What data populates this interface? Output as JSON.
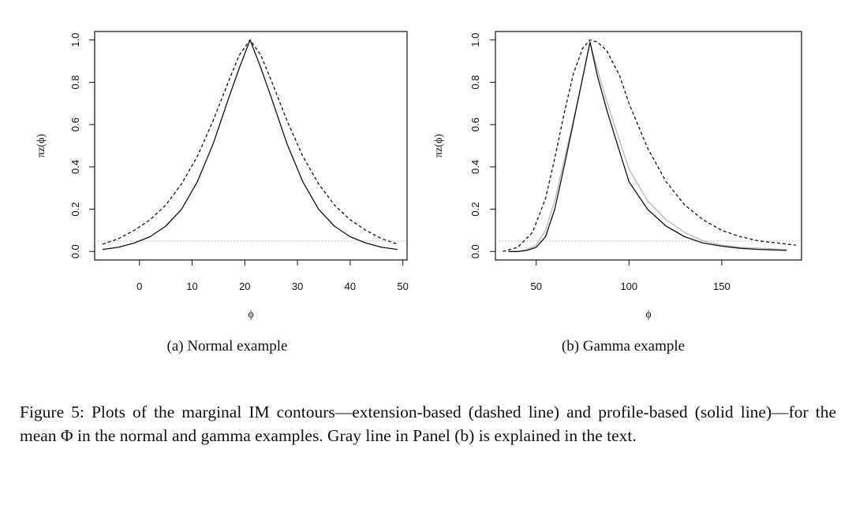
{
  "figure": {
    "caption": "Figure 5: Plots of the marginal IM contours—extension-based (dashed line) and profile-based (solid line)—for the mean Φ in the normal and gamma examples.  Gray line in Panel (b) is explained in the text."
  },
  "chart_data": [
    {
      "type": "line",
      "subcaption": "(a) Normal example",
      "xlabel": "ϕ",
      "ylabel": "πz(ϕ)",
      "xlim": [
        -8.5,
        50.8
      ],
      "ylim": [
        -0.04,
        1.04
      ],
      "xticks": [
        0,
        10,
        20,
        30,
        40,
        50
      ],
      "yticks": [
        0.0,
        0.2,
        0.4,
        0.6,
        0.8,
        1.0
      ],
      "reference_line": {
        "y": 0.05,
        "style": "dotted",
        "color": "#aaaaaa"
      },
      "series": [
        {
          "style": "dashed",
          "color": "#111111",
          "x": [
            -7,
            -4,
            -1,
            2,
            5,
            8,
            11,
            14,
            17,
            19,
            21,
            23,
            25,
            28,
            31,
            34,
            37,
            40,
            43,
            46,
            49
          ],
          "y": [
            0.035,
            0.06,
            0.1,
            0.15,
            0.22,
            0.32,
            0.45,
            0.62,
            0.81,
            0.93,
            1.0,
            0.93,
            0.81,
            0.62,
            0.45,
            0.32,
            0.22,
            0.15,
            0.1,
            0.06,
            0.035
          ]
        },
        {
          "style": "solid",
          "color": "#111111",
          "x": [
            -7,
            -4,
            -1,
            2,
            5,
            8,
            11,
            14,
            17,
            19,
            21,
            23,
            25,
            28,
            31,
            34,
            37,
            40,
            43,
            46,
            49
          ],
          "y": [
            0.01,
            0.02,
            0.04,
            0.07,
            0.12,
            0.2,
            0.33,
            0.51,
            0.73,
            0.87,
            1.0,
            0.87,
            0.73,
            0.51,
            0.33,
            0.2,
            0.12,
            0.07,
            0.04,
            0.02,
            0.01
          ]
        }
      ]
    },
    {
      "type": "line",
      "subcaption": "(b) Gamma example",
      "xlabel": "ϕ",
      "ylabel": "πz(ϕ)",
      "xlim": [
        28,
        193
      ],
      "ylim": [
        -0.04,
        1.04
      ],
      "xticks": [
        50,
        100,
        150
      ],
      "yticks": [
        0.0,
        0.2,
        0.4,
        0.6,
        0.8,
        1.0
      ],
      "reference_line": {
        "y": 0.05,
        "style": "dotted",
        "color": "#aaaaaa"
      },
      "series": [
        {
          "style": "dashed",
          "color": "#111111",
          "x": [
            32,
            40,
            48,
            55,
            60,
            65,
            70,
            75,
            79,
            83,
            88,
            95,
            100,
            110,
            120,
            130,
            140,
            150,
            160,
            170,
            180,
            190
          ],
          "y": [
            0.0,
            0.02,
            0.09,
            0.25,
            0.44,
            0.65,
            0.84,
            0.96,
            1.0,
            0.99,
            0.95,
            0.83,
            0.7,
            0.49,
            0.33,
            0.22,
            0.15,
            0.1,
            0.07,
            0.05,
            0.04,
            0.03
          ]
        },
        {
          "style": "solid",
          "color": "#111111",
          "x": [
            35,
            40,
            45,
            50,
            55,
            60,
            65,
            70,
            75,
            79,
            83,
            88,
            95,
            100,
            110,
            120,
            130,
            140,
            150,
            160,
            170,
            185
          ],
          "y": [
            0.0,
            0.0,
            0.005,
            0.02,
            0.07,
            0.2,
            0.4,
            0.61,
            0.82,
            0.99,
            0.83,
            0.67,
            0.47,
            0.33,
            0.2,
            0.12,
            0.07,
            0.04,
            0.025,
            0.015,
            0.01,
            0.005
          ]
        },
        {
          "style": "solid",
          "color": "#b8b8b8",
          "x": [
            35,
            40,
            45,
            50,
            55,
            60,
            65,
            70,
            75,
            79,
            83,
            88,
            95,
            100,
            110,
            120,
            130,
            140,
            150,
            160,
            170,
            185
          ],
          "y": [
            0.0,
            0.0,
            0.01,
            0.03,
            0.1,
            0.24,
            0.43,
            0.62,
            0.82,
            0.99,
            0.86,
            0.71,
            0.52,
            0.39,
            0.24,
            0.15,
            0.09,
            0.05,
            0.03,
            0.02,
            0.015,
            0.01
          ]
        }
      ]
    }
  ]
}
